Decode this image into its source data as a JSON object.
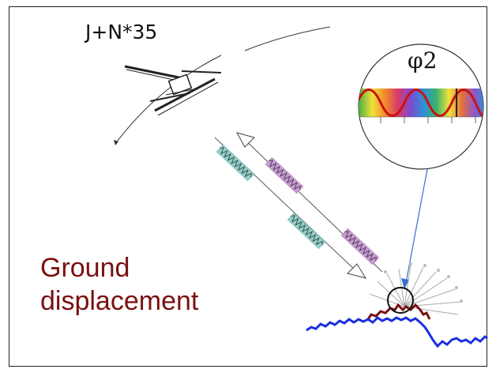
{
  "satellite_label": "J+N*35",
  "phase_label": "φ2",
  "ground_label": {
    "line1": "Ground",
    "line2": "displacement"
  },
  "colors": {
    "ground_text": "#7a1010",
    "terrain_before": "#1a2ee0",
    "terrain_after": "#7a1010",
    "wave_outgoing": "#8fd0c8",
    "wave_return": "#c99ad6",
    "phase_wave": "#cc1111"
  },
  "icons": [
    "satellite-icon",
    "radar-beam-icon",
    "wave-spectrum-icon"
  ]
}
